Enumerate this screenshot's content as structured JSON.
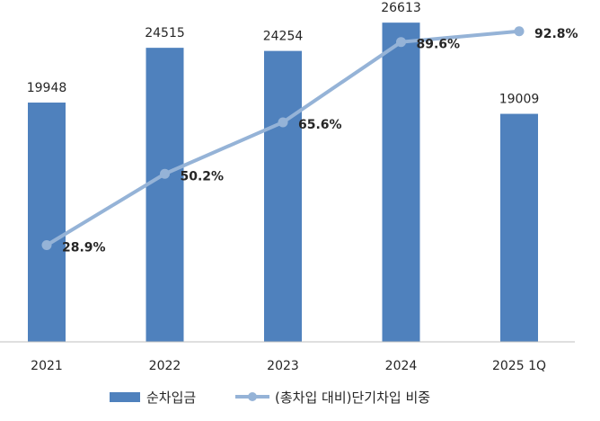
{
  "chart_data": {
    "type": "bar",
    "categories": [
      "2021",
      "2022",
      "2023",
      "2024",
      "2025 1Q"
    ],
    "series": [
      {
        "name": "순차입금",
        "type": "bar",
        "axis": "left",
        "color": "#4f81bd",
        "values": [
          19948,
          24515,
          24254,
          26613,
          19009
        ],
        "labels": [
          "19948",
          "24515",
          "24254",
          "26613",
          "19009"
        ]
      },
      {
        "name": "(총차입 대비)단기차입 비중",
        "type": "line",
        "axis": "right",
        "color": "#95b3d7",
        "values": [
          28.9,
          50.2,
          65.6,
          89.6,
          92.8
        ],
        "labels": [
          "28.9%",
          "50.2%",
          "65.6%",
          "89.6%",
          "92.8%"
        ]
      }
    ],
    "ylim": [
      0,
      27000
    ],
    "y2lim": [
      0,
      100
    ],
    "grid": false,
    "legend_position": "bottom",
    "title": "",
    "xlabel": "",
    "ylabel": ""
  }
}
